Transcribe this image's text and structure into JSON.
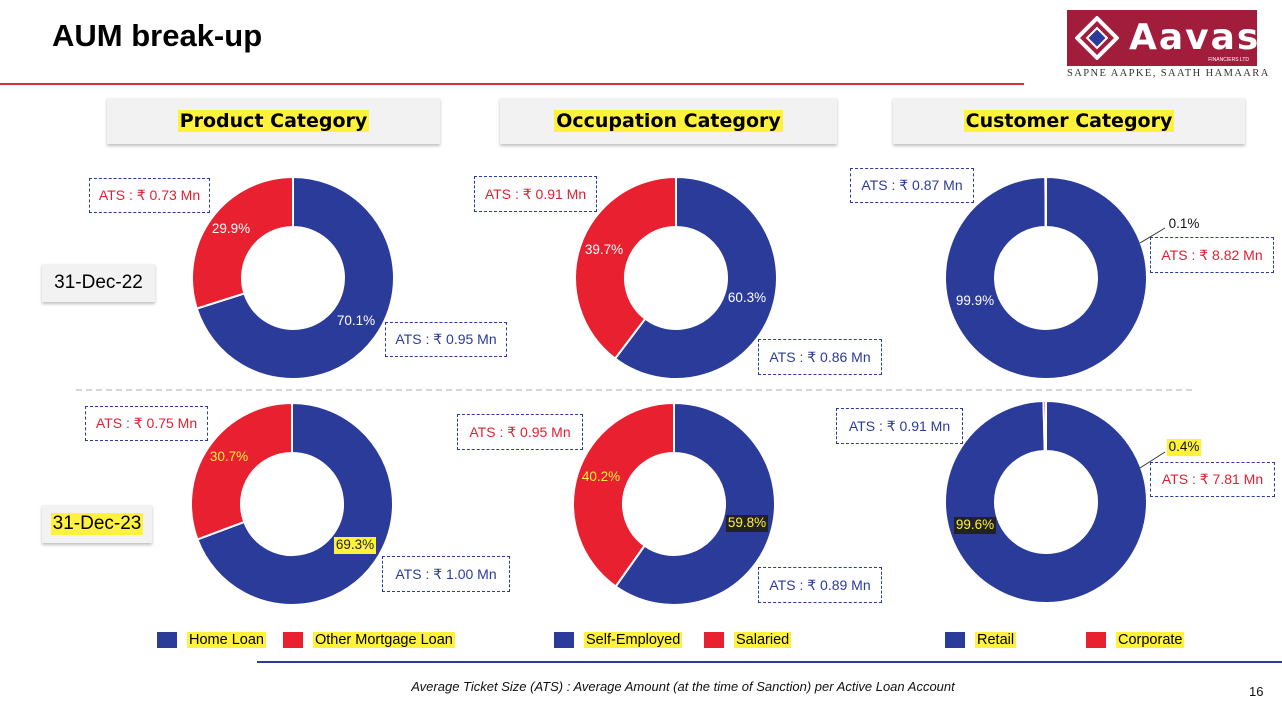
{
  "page": {
    "title": "AUM break-up",
    "page_number": "16",
    "footnote": "Average Ticket Size (ATS) : Average Amount (at the time of Sanction) per Active Loan Account"
  },
  "logo": {
    "name": "Aavas",
    "sub": "FINANCIERS LTD",
    "tagline": "SAPNE AAPKE, SAATH HAMAARA"
  },
  "categories": {
    "product": "Product Category",
    "occupation": "Occupation Category",
    "customer": "Customer Category"
  },
  "dates": {
    "d1": "31-Dec-22",
    "d2": "31-Dec-23"
  },
  "ats": {
    "p22_red": "ATS : ₹ 0.73 Mn",
    "p22_blue": "ATS : ₹ 0.95 Mn",
    "o22_red": "ATS : ₹ 0.91 Mn",
    "o22_blue": "ATS : ₹ 0.86 Mn",
    "c22_blue": "ATS : ₹ 0.87 Mn",
    "c22_red": "ATS : ₹ 8.82 Mn",
    "p23_red": "ATS : ₹ 0.75 Mn",
    "p23_blue": "ATS : ₹ 1.00 Mn",
    "o23_red": "ATS : ₹ 0.95 Mn",
    "o23_blue": "ATS : ₹ 0.89 Mn",
    "c23_blue": "ATS : ₹ 0.91 Mn",
    "c23_red": "ATS : ₹ 7.81 Mn"
  },
  "legend": {
    "home_loan": "Home Loan",
    "other_mortgage": "Other Mortgage Loan",
    "self_employed": "Self-Employed",
    "salaried": "Salaried",
    "retail": "Retail",
    "corporate": "Corporate"
  },
  "colors": {
    "blue": "#2b3b9a",
    "red": "#e8202f",
    "highlight": "#fff23d",
    "brand": "#a21d3c"
  },
  "chart_data": [
    {
      "type": "pie",
      "id": "p22",
      "date": "31-Dec-22",
      "category": "Product Category",
      "labels": [
        "Home Loan",
        "Other Mortgage Loan"
      ],
      "values": [
        70.1,
        29.9
      ]
    },
    {
      "type": "pie",
      "id": "o22",
      "date": "31-Dec-22",
      "category": "Occupation Category",
      "labels": [
        "Self-Employed",
        "Salaried"
      ],
      "values": [
        60.3,
        39.7
      ]
    },
    {
      "type": "pie",
      "id": "c22",
      "date": "31-Dec-22",
      "category": "Customer Category",
      "labels": [
        "Retail",
        "Corporate"
      ],
      "values": [
        99.9,
        0.1
      ]
    },
    {
      "type": "pie",
      "id": "p23",
      "date": "31-Dec-23",
      "category": "Product Category",
      "labels": [
        "Home Loan",
        "Other Mortgage Loan"
      ],
      "values": [
        69.3,
        30.7
      ]
    },
    {
      "type": "pie",
      "id": "o23",
      "date": "31-Dec-23",
      "category": "Occupation Category",
      "labels": [
        "Self-Employed",
        "Salaried"
      ],
      "values": [
        59.8,
        40.2
      ]
    },
    {
      "type": "pie",
      "id": "c23",
      "date": "31-Dec-23",
      "category": "Customer Category",
      "labels": [
        "Retail",
        "Corporate"
      ],
      "values": [
        99.6,
        0.4
      ]
    }
  ]
}
